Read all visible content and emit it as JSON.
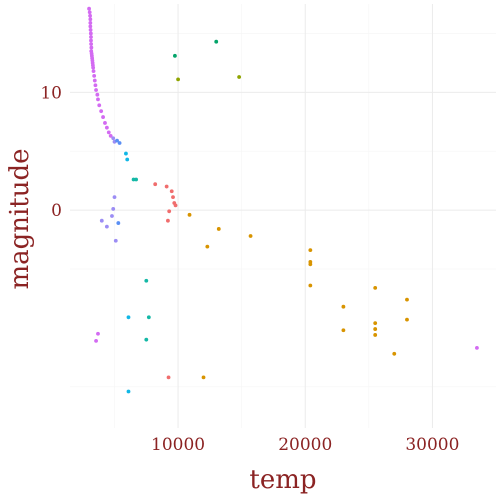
{
  "chart_data": {
    "type": "scatter",
    "xlabel": "temp",
    "ylabel": "magnitude",
    "xlim": [
      1500,
      35000
    ],
    "ylim": [
      -18.5,
      17.5
    ],
    "y_reversed": true,
    "x_ticks": [
      10000,
      20000,
      30000
    ],
    "x_tick_labels": [
      "10000",
      "20000",
      "30000"
    ],
    "y_ticks": [
      10,
      0
    ],
    "y_tick_labels": [
      "10",
      "0"
    ],
    "grid": true,
    "legend": "none",
    "colors": {
      "magenta": "#d36bf2",
      "purple": "#9c8df4",
      "blue": "#5a8ff4",
      "cyan": "#11b7e6",
      "teal": "#14b8a6",
      "green": "#04a46a",
      "olive": "#8fa400",
      "orange": "#d89400",
      "red": "#f06d6d"
    },
    "points": [
      {
        "x": 3000,
        "y": 17.1,
        "c": "magenta"
      },
      {
        "x": 3050,
        "y": 16.8,
        "c": "magenta"
      },
      {
        "x": 3080,
        "y": 16.5,
        "c": "magenta"
      },
      {
        "x": 3100,
        "y": 16.2,
        "c": "magenta"
      },
      {
        "x": 3100,
        "y": 15.9,
        "c": "magenta"
      },
      {
        "x": 3100,
        "y": 15.6,
        "c": "magenta"
      },
      {
        "x": 3120,
        "y": 15.3,
        "c": "magenta"
      },
      {
        "x": 3140,
        "y": 15.0,
        "c": "magenta"
      },
      {
        "x": 3150,
        "y": 14.7,
        "c": "magenta"
      },
      {
        "x": 3150,
        "y": 14.4,
        "c": "magenta"
      },
      {
        "x": 3160,
        "y": 14.1,
        "c": "magenta"
      },
      {
        "x": 3180,
        "y": 13.8,
        "c": "magenta"
      },
      {
        "x": 3170,
        "y": 13.5,
        "c": "magenta"
      },
      {
        "x": 3200,
        "y": 13.3,
        "c": "magenta"
      },
      {
        "x": 3220,
        "y": 13.1,
        "c": "magenta"
      },
      {
        "x": 3240,
        "y": 12.9,
        "c": "magenta"
      },
      {
        "x": 3260,
        "y": 12.7,
        "c": "magenta"
      },
      {
        "x": 3280,
        "y": 12.5,
        "c": "magenta"
      },
      {
        "x": 3300,
        "y": 12.3,
        "c": "magenta"
      },
      {
        "x": 3320,
        "y": 12.1,
        "c": "magenta"
      },
      {
        "x": 3350,
        "y": 11.8,
        "c": "magenta"
      },
      {
        "x": 3400,
        "y": 11.4,
        "c": "magenta"
      },
      {
        "x": 3450,
        "y": 11.0,
        "c": "magenta"
      },
      {
        "x": 3500,
        "y": 10.6,
        "c": "magenta"
      },
      {
        "x": 3550,
        "y": 10.2,
        "c": "magenta"
      },
      {
        "x": 3650,
        "y": 9.8,
        "c": "magenta"
      },
      {
        "x": 3700,
        "y": 9.4,
        "c": "magenta"
      },
      {
        "x": 3800,
        "y": 8.9,
        "c": "magenta"
      },
      {
        "x": 3950,
        "y": 8.4,
        "c": "magenta"
      },
      {
        "x": 4100,
        "y": 7.9,
        "c": "magenta"
      },
      {
        "x": 4250,
        "y": 7.4,
        "c": "magenta"
      },
      {
        "x": 4400,
        "y": 7.0,
        "c": "magenta"
      },
      {
        "x": 4550,
        "y": 6.6,
        "c": "magenta"
      },
      {
        "x": 4700,
        "y": 6.3,
        "c": "magenta"
      },
      {
        "x": 3700,
        "y": -10.5,
        "c": "magenta"
      },
      {
        "x": 3550,
        "y": -11.1,
        "c": "magenta"
      },
      {
        "x": 33500,
        "y": -11.7,
        "c": "magenta"
      },
      {
        "x": 4900,
        "y": 6.1,
        "c": "purple"
      },
      {
        "x": 5000,
        "y": 5.8,
        "c": "purple"
      },
      {
        "x": 4000,
        "y": -0.9,
        "c": "purple"
      },
      {
        "x": 4400,
        "y": -1.4,
        "c": "purple"
      },
      {
        "x": 4800,
        "y": -0.5,
        "c": "purple"
      },
      {
        "x": 4900,
        "y": 0.1,
        "c": "purple"
      },
      {
        "x": 5000,
        "y": 1.1,
        "c": "purple"
      },
      {
        "x": 5100,
        "y": -2.6,
        "c": "purple"
      },
      {
        "x": 5200,
        "y": 5.9,
        "c": "blue"
      },
      {
        "x": 5400,
        "y": 5.7,
        "c": "blue"
      },
      {
        "x": 5300,
        "y": -1.1,
        "c": "blue"
      },
      {
        "x": 5900,
        "y": 4.8,
        "c": "cyan"
      },
      {
        "x": 6000,
        "y": 4.3,
        "c": "cyan"
      },
      {
        "x": 6100,
        "y": -9.1,
        "c": "cyan"
      },
      {
        "x": 6100,
        "y": -15.4,
        "c": "cyan"
      },
      {
        "x": 6500,
        "y": 2.6,
        "c": "teal"
      },
      {
        "x": 6700,
        "y": 2.6,
        "c": "teal"
      },
      {
        "x": 7500,
        "y": -6.0,
        "c": "teal"
      },
      {
        "x": 7700,
        "y": -9.1,
        "c": "teal"
      },
      {
        "x": 7500,
        "y": -11.0,
        "c": "teal"
      },
      {
        "x": 9750,
        "y": 13.1,
        "c": "green"
      },
      {
        "x": 13000,
        "y": 14.3,
        "c": "green"
      },
      {
        "x": 10000,
        "y": 11.1,
        "c": "olive"
      },
      {
        "x": 14800,
        "y": 11.3,
        "c": "olive"
      },
      {
        "x": 8200,
        "y": 2.2,
        "c": "red"
      },
      {
        "x": 9100,
        "y": 2.0,
        "c": "red"
      },
      {
        "x": 9500,
        "y": 1.6,
        "c": "red"
      },
      {
        "x": 9600,
        "y": 1.1,
        "c": "red"
      },
      {
        "x": 9700,
        "y": 0.6,
        "c": "red"
      },
      {
        "x": 9800,
        "y": 0.4,
        "c": "red"
      },
      {
        "x": 9300,
        "y": -0.1,
        "c": "red"
      },
      {
        "x": 9200,
        "y": -0.9,
        "c": "red"
      },
      {
        "x": 9250,
        "y": -14.2,
        "c": "red"
      },
      {
        "x": 10900,
        "y": -0.4,
        "c": "orange"
      },
      {
        "x": 12300,
        "y": -3.1,
        "c": "orange"
      },
      {
        "x": 13200,
        "y": -1.6,
        "c": "orange"
      },
      {
        "x": 15700,
        "y": -2.2,
        "c": "orange"
      },
      {
        "x": 12000,
        "y": -14.2,
        "c": "orange"
      },
      {
        "x": 20400,
        "y": -3.4,
        "c": "orange"
      },
      {
        "x": 20400,
        "y": -4.4,
        "c": "orange"
      },
      {
        "x": 20400,
        "y": -4.6,
        "c": "orange"
      },
      {
        "x": 20400,
        "y": -6.4,
        "c": "orange"
      },
      {
        "x": 23000,
        "y": -8.2,
        "c": "orange"
      },
      {
        "x": 23000,
        "y": -10.2,
        "c": "orange"
      },
      {
        "x": 25500,
        "y": -6.6,
        "c": "orange"
      },
      {
        "x": 25500,
        "y": -9.6,
        "c": "orange"
      },
      {
        "x": 25500,
        "y": -10.1,
        "c": "orange"
      },
      {
        "x": 25500,
        "y": -10.6,
        "c": "orange"
      },
      {
        "x": 27000,
        "y": -12.2,
        "c": "orange"
      },
      {
        "x": 28000,
        "y": -7.6,
        "c": "orange"
      },
      {
        "x": 28000,
        "y": -9.3,
        "c": "orange"
      }
    ]
  }
}
